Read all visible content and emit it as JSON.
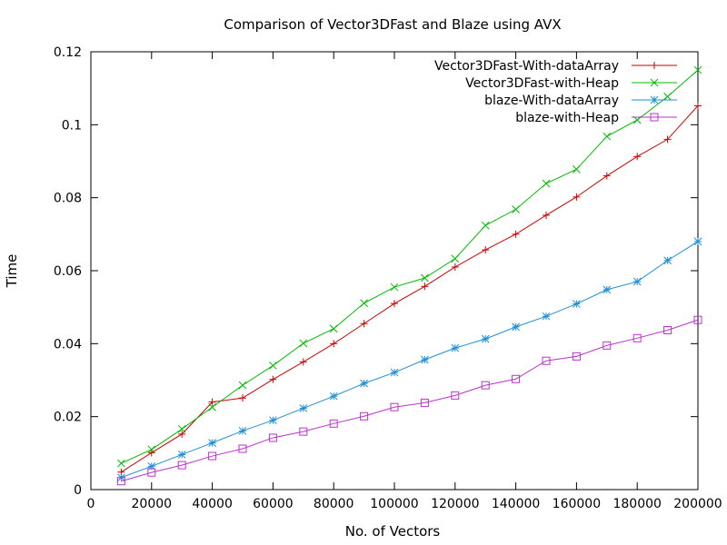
{
  "chart_data": {
    "type": "line",
    "title": "Comparison of Vector3DFast and Blaze using AVX",
    "xlabel": "No. of Vectors",
    "ylabel": "Time",
    "xlim": [
      0,
      200000
    ],
    "ylim": [
      0,
      0.12
    ],
    "xticks": [
      0,
      20000,
      40000,
      60000,
      80000,
      100000,
      120000,
      140000,
      160000,
      180000,
      200000
    ],
    "xtick_labels": [
      "0",
      "20000",
      "40000",
      "60000",
      "80000",
      "100000",
      "120000",
      "140000",
      "160000",
      "180000",
      "200000"
    ],
    "yticks": [
      0,
      0.02,
      0.04,
      0.06,
      0.08,
      0.1,
      0.12
    ],
    "ytick_labels": [
      "0",
      "0.02",
      "0.04",
      "0.06",
      "0.08",
      "0.1",
      "0.12"
    ],
    "grid": false,
    "legend_position": "top-right",
    "x": [
      10000,
      20000,
      30000,
      40000,
      50000,
      60000,
      70000,
      80000,
      90000,
      100000,
      110000,
      120000,
      130000,
      140000,
      150000,
      160000,
      170000,
      180000,
      190000,
      200000
    ],
    "series": [
      {
        "name": "Vector3DFast-With-dataArray",
        "color": "#cc0000",
        "marker": "plus",
        "values": [
          0.0048,
          0.0101,
          0.0152,
          0.024,
          0.0251,
          0.0302,
          0.035,
          0.04,
          0.0455,
          0.051,
          0.0557,
          0.061,
          0.0657,
          0.07,
          0.0752,
          0.0802,
          0.086,
          0.0913,
          0.096,
          0.1052
        ]
      },
      {
        "name": "Vector3DFast-with-Heap",
        "color": "#00bb00",
        "marker": "cross",
        "values": [
          0.0072,
          0.011,
          0.0166,
          0.0226,
          0.0286,
          0.034,
          0.0401,
          0.0441,
          0.0511,
          0.0555,
          0.058,
          0.0633,
          0.0724,
          0.0768,
          0.0839,
          0.0878,
          0.0968,
          0.1013,
          0.1077,
          0.115
        ]
      },
      {
        "name": "blaze-With-dataArray",
        "color": "#1e8fd6",
        "marker": "star",
        "values": [
          0.0033,
          0.0064,
          0.0096,
          0.0128,
          0.0161,
          0.019,
          0.0223,
          0.0256,
          0.0291,
          0.0321,
          0.0356,
          0.0388,
          0.0413,
          0.0446,
          0.0475,
          0.0509,
          0.0548,
          0.057,
          0.0628,
          0.068
        ]
      },
      {
        "name": "blaze-with-Heap",
        "color": "#bb33cc",
        "marker": "square",
        "values": [
          0.0023,
          0.0047,
          0.0067,
          0.0092,
          0.0112,
          0.0142,
          0.0159,
          0.0181,
          0.0201,
          0.0226,
          0.0238,
          0.0258,
          0.0286,
          0.0303,
          0.0353,
          0.0365,
          0.0395,
          0.0415,
          0.0437,
          0.0465
        ]
      }
    ]
  }
}
